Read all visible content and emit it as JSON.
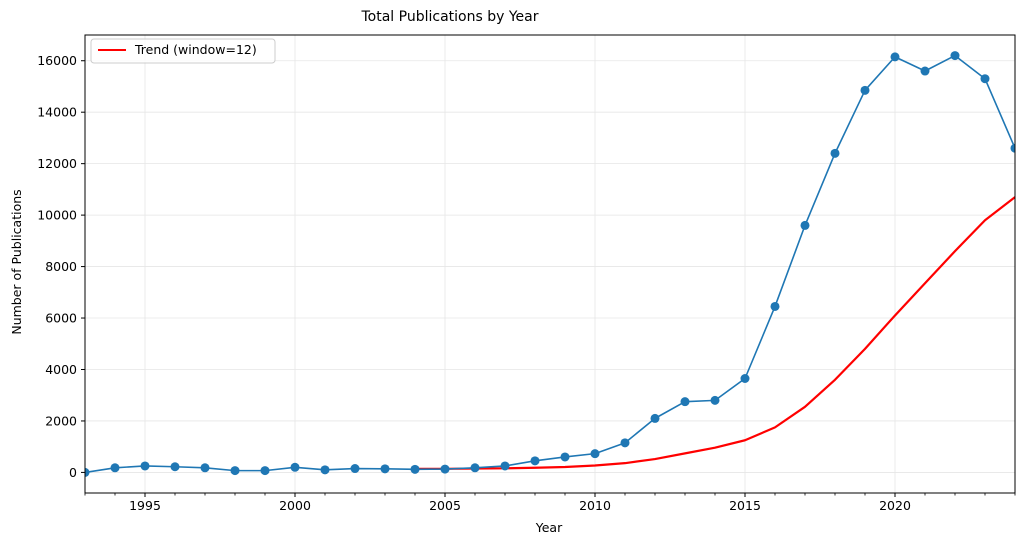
{
  "chart_data": {
    "type": "line",
    "title": "Total Publications by Year",
    "xlabel": "Year",
    "ylabel": "Number of Publications",
    "xlim": [
      1993,
      2024
    ],
    "ylim": [
      -800,
      17000
    ],
    "x_ticks": [
      1995,
      2000,
      2005,
      2010,
      2015,
      2020
    ],
    "x_minor_ticks": [
      1993,
      1994,
      1996,
      1997,
      1998,
      1999,
      2001,
      2002,
      2003,
      2004,
      2006,
      2007,
      2008,
      2009,
      2011,
      2012,
      2013,
      2014,
      2016,
      2017,
      2018,
      2019,
      2021,
      2022,
      2023,
      2024
    ],
    "y_ticks": [
      0,
      2000,
      4000,
      6000,
      8000,
      10000,
      12000,
      14000,
      16000
    ],
    "grid": true,
    "legend_position": "top-left",
    "series": [
      {
        "color": "#1f77b4",
        "marker": "circle",
        "x": [
          1993,
          1994,
          1995,
          1996,
          1997,
          1998,
          1999,
          2000,
          2001,
          2002,
          2003,
          2004,
          2005,
          2006,
          2007,
          2008,
          2009,
          2010,
          2011,
          2012,
          2013,
          2014,
          2015,
          2016,
          2017,
          2018,
          2019,
          2020,
          2021,
          2022,
          2023,
          2024
        ],
        "y": [
          0,
          180,
          250,
          220,
          180,
          70,
          70,
          200,
          100,
          150,
          140,
          120,
          130,
          180,
          250,
          450,
          600,
          730,
          1150,
          2100,
          2750,
          2800,
          3650,
          6450,
          9600,
          12400,
          14850,
          16150,
          15600,
          16200,
          15300,
          12600
        ]
      },
      {
        "name": "Trend (window=12)",
        "color": "#ff0000",
        "x": [
          2004,
          2005,
          2006,
          2007,
          2008,
          2009,
          2010,
          2011,
          2012,
          2013,
          2014,
          2015,
          2016,
          2017,
          2018,
          2019,
          2020,
          2021,
          2022,
          2023,
          2024
        ],
        "y": [
          140,
          140,
          150,
          160,
          180,
          210,
          270,
          360,
          520,
          740,
          960,
          1250,
          1750,
          2550,
          3600,
          4800,
          6100,
          7350,
          8600,
          9800,
          10700
        ]
      }
    ]
  }
}
